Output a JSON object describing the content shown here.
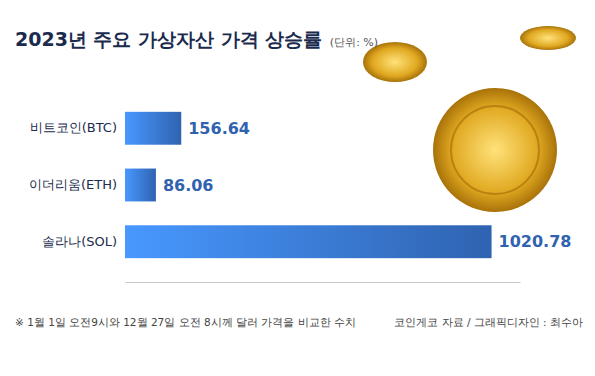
{
  "chart_data": {
    "type": "bar",
    "title": "2023년 주요 가상자산 가격 상승률",
    "subtitle": "(단위: %)",
    "categories": [
      "비트코인(BTC)",
      "이더리움(ETH)",
      "솔라나(SOL)"
    ],
    "values": [
      156.64,
      86.06,
      1020.78
    ],
    "color": "#2f63b0",
    "orientation": "horizontal",
    "data_labels": true,
    "tick_labels": false,
    "grid": false,
    "xlim": [
      0,
      1100
    ],
    "annotations": [
      "※ 1월 1일 오전9시와 12월 27일 오전 8시께 달러 가격을 비교한 수치",
      "코인게코 자료 / 그래픽디자인 : 최수아"
    ]
  }
}
